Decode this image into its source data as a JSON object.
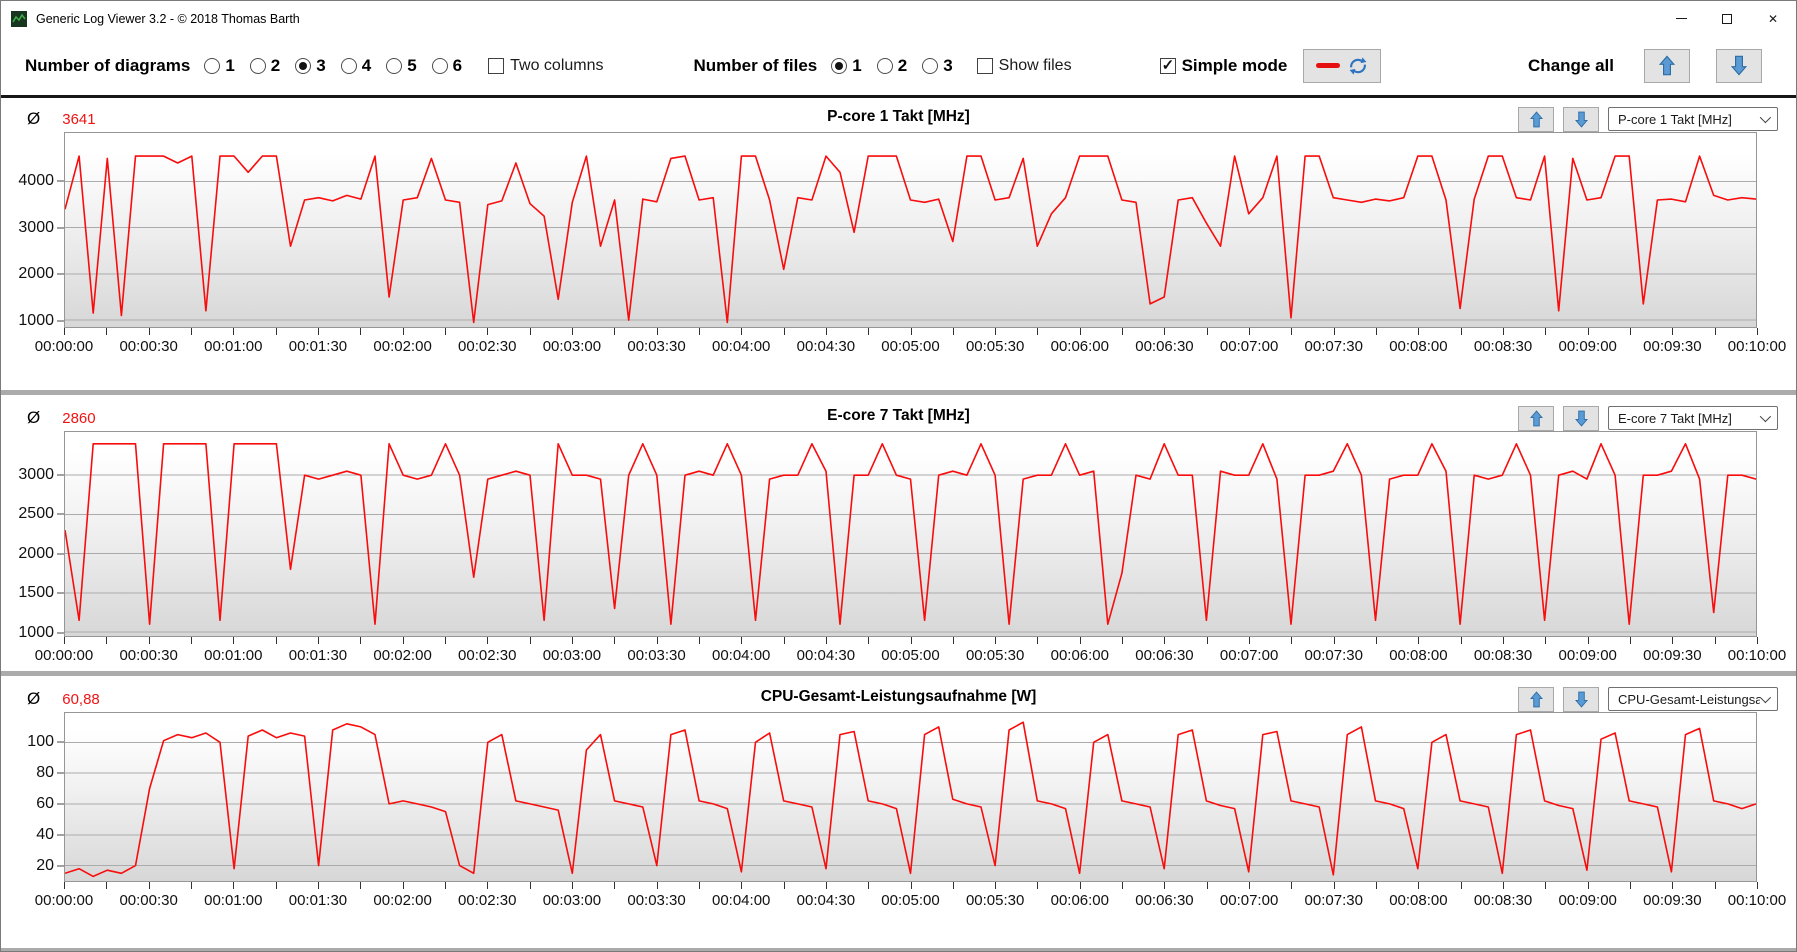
{
  "window": {
    "title": "Generic Log Viewer 3.2 - © 2018 Thomas Barth",
    "close_icon": "✕"
  },
  "toolbar": {
    "diagrams": {
      "label": "Number of diagrams",
      "options": [
        "1",
        "2",
        "3",
        "4",
        "5",
        "6"
      ],
      "selected": "3"
    },
    "two_columns": {
      "label": "Two columns",
      "checked": false
    },
    "files": {
      "label": "Number of files",
      "options": [
        "1",
        "2",
        "3"
      ],
      "selected": "1"
    },
    "show_files": {
      "label": "Show files",
      "checked": false
    },
    "simple_mode": {
      "label": "Simple mode",
      "checked": true
    },
    "change_all_label": "Change all"
  },
  "colors": {
    "line": "#f80c0c",
    "average_text": "#ee1414",
    "arrow_blue": "#5b9bd5",
    "arrow_blue_dark": "#2e6da4",
    "plot_gradient_top": "#ffffff",
    "plot_gradient_bottom": "#d7d7d7"
  },
  "charts": [
    {
      "avg_symbol": "Ø",
      "average": "3641",
      "title": "P-core 1 Takt [MHz]",
      "dropdown": "P-core 1 Takt [MHz]"
    },
    {
      "avg_symbol": "Ø",
      "average": "2860",
      "title": "E-core 7 Takt [MHz]",
      "dropdown": "E-core 7 Takt [MHz]"
    },
    {
      "avg_symbol": "Ø",
      "average": "60,88",
      "title": "CPU-Gesamt-Leistungsaufnahme [W]",
      "dropdown": "CPU-Gesamt-Leistungsau"
    }
  ],
  "x_axis": {
    "labels": [
      "00:00:00",
      "00:00:30",
      "00:01:00",
      "00:01:30",
      "00:02:00",
      "00:02:30",
      "00:03:00",
      "00:03:30",
      "00:04:00",
      "00:04:30",
      "00:05:00",
      "00:05:30",
      "00:06:00",
      "00:06:30",
      "00:07:00",
      "00:07:30",
      "00:08:00",
      "00:08:30",
      "00:09:00",
      "00:09:30",
      "00:10:00"
    ]
  },
  "chart_data": [
    {
      "type": "line",
      "title": "P-core 1 Takt [MHz]",
      "ylabel": "MHz",
      "average": 3641,
      "x_start_seconds": 0,
      "x_step_seconds": 5,
      "x_end_seconds": 600,
      "y_ticks": [
        1000,
        2000,
        3000,
        4000
      ],
      "ylim": [
        850,
        5050
      ],
      "grid": true,
      "legend": "none",
      "values": [
        3400,
        4550,
        1150,
        4500,
        1100,
        4550,
        4550,
        4550,
        4400,
        4550,
        1200,
        4550,
        4550,
        4200,
        4550,
        4550,
        2600,
        3600,
        3650,
        3580,
        3700,
        3620,
        4550,
        1500,
        3600,
        3650,
        4500,
        3600,
        3550,
        950,
        3500,
        3580,
        4400,
        3520,
        3250,
        1450,
        3550,
        4550,
        2600,
        3600,
        1000,
        3620,
        3560,
        4500,
        4550,
        3600,
        3650,
        950,
        4550,
        4550,
        3600,
        2100,
        3650,
        3600,
        4550,
        4200,
        2900,
        4550,
        4550,
        4550,
        3600,
        3550,
        3620,
        2700,
        4550,
        4550,
        3600,
        3650,
        4500,
        2600,
        3300,
        3650,
        4550,
        4550,
        4550,
        3600,
        3550,
        1350,
        1500,
        3600,
        3650,
        3100,
        2600,
        4550,
        3300,
        3650,
        4550,
        1050,
        4550,
        4550,
        3650,
        3600,
        3550,
        3620,
        3580,
        3650,
        4550,
        4550,
        3600,
        1250,
        3620,
        4550,
        4550,
        3650,
        3600,
        4550,
        1200,
        4500,
        3600,
        3650,
        4550,
        4550,
        1350,
        3600,
        3620,
        3560,
        4550,
        3700,
        3600,
        3650,
        3620
      ]
    },
    {
      "type": "line",
      "title": "E-core 7 Takt [MHz]",
      "ylabel": "MHz",
      "average": 2860,
      "x_start_seconds": 0,
      "x_step_seconds": 5,
      "x_end_seconds": 600,
      "y_ticks": [
        1000,
        1500,
        2000,
        2500,
        3000
      ],
      "ylim": [
        950,
        3550
      ],
      "grid": true,
      "legend": "none",
      "values": [
        2300,
        1150,
        3400,
        3400,
        3400,
        3400,
        1100,
        3400,
        3400,
        3400,
        3400,
        1150,
        3400,
        3400,
        3400,
        3400,
        1800,
        3000,
        2950,
        3000,
        3050,
        3000,
        1100,
        3400,
        3000,
        2950,
        3000,
        3400,
        3000,
        1700,
        2950,
        3000,
        3050,
        3000,
        1150,
        3400,
        3000,
        3000,
        2950,
        1300,
        3000,
        3400,
        3000,
        1100,
        3000,
        3050,
        3000,
        3400,
        3000,
        1150,
        2950,
        3000,
        3000,
        3400,
        3050,
        1100,
        3000,
        3000,
        3400,
        3000,
        2950,
        1150,
        3000,
        3050,
        3000,
        3400,
        3000,
        1100,
        2950,
        3000,
        3000,
        3400,
        3000,
        3050,
        1100,
        1750,
        3000,
        2950,
        3400,
        3000,
        3000,
        1150,
        3050,
        3000,
        3000,
        3400,
        2950,
        1100,
        3000,
        3000,
        3050,
        3400,
        3000,
        1150,
        2950,
        3000,
        3000,
        3400,
        3050,
        1100,
        3000,
        2950,
        3000,
        3400,
        3000,
        1150,
        3000,
        3050,
        2950,
        3400,
        3000,
        1100,
        3000,
        3000,
        3050,
        3400,
        2950,
        1250,
        3000,
        3000,
        2950
      ]
    },
    {
      "type": "line",
      "title": "CPU-Gesamt-Leistungsaufnahme [W]",
      "ylabel": "W",
      "average": 60.88,
      "x_start_seconds": 0,
      "x_step_seconds": 5,
      "x_end_seconds": 600,
      "y_ticks": [
        20,
        40,
        60,
        80,
        100
      ],
      "ylim": [
        10,
        119
      ],
      "grid": true,
      "legend": "none",
      "values": [
        15,
        18,
        13,
        17,
        15,
        20,
        70,
        101,
        105,
        103,
        106,
        100,
        18,
        104,
        108,
        103,
        106,
        104,
        20,
        108,
        112,
        110,
        105,
        60,
        62,
        60,
        58,
        55,
        20,
        15,
        100,
        105,
        62,
        60,
        58,
        56,
        15,
        95,
        105,
        62,
        60,
        58,
        20,
        105,
        108,
        62,
        60,
        57,
        16,
        100,
        106,
        62,
        60,
        58,
        18,
        105,
        107,
        62,
        60,
        57,
        15,
        105,
        110,
        63,
        60,
        58,
        20,
        108,
        113,
        62,
        60,
        57,
        15,
        100,
        105,
        62,
        60,
        58,
        18,
        105,
        108,
        62,
        59,
        57,
        16,
        105,
        107,
        62,
        60,
        58,
        14,
        105,
        110,
        62,
        60,
        57,
        18,
        100,
        105,
        62,
        60,
        58,
        15,
        105,
        108,
        62,
        59,
        57,
        17,
        102,
        106,
        62,
        60,
        58,
        16,
        105,
        109,
        62,
        60,
        57,
        60
      ]
    }
  ]
}
